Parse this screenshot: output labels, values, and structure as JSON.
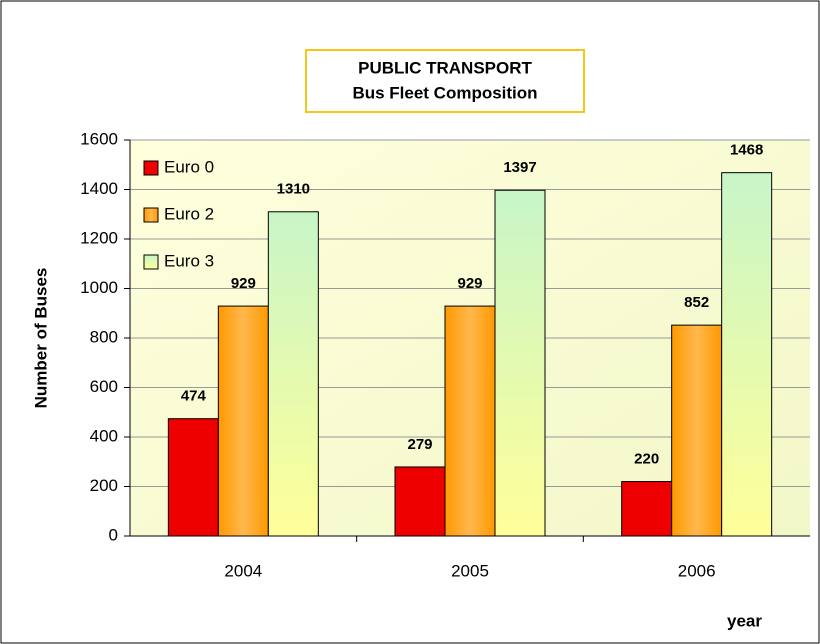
{
  "chart_data": {
    "type": "bar",
    "title": "PUBLIC TRANSPORT",
    "subtitle": "Bus Fleet Composition",
    "y_label": "Number of Buses",
    "x_label": "year",
    "categories": [
      "2004",
      "2005",
      "2006"
    ],
    "series": [
      {
        "name": "Euro 0",
        "color": "#ee0000",
        "values": [
          474,
          279,
          220
        ]
      },
      {
        "name": "Euro 2",
        "color": "#ff9900",
        "values": [
          929,
          929,
          852
        ]
      },
      {
        "name": "Euro 3",
        "color": "#c8f5c8",
        "values": [
          1310,
          1397,
          1468
        ]
      }
    ],
    "ylim": [
      0,
      1600
    ],
    "yticks": [
      0,
      200,
      400,
      600,
      800,
      1000,
      1200,
      1400,
      1600
    ],
    "grid": true,
    "legend": "top-left"
  }
}
